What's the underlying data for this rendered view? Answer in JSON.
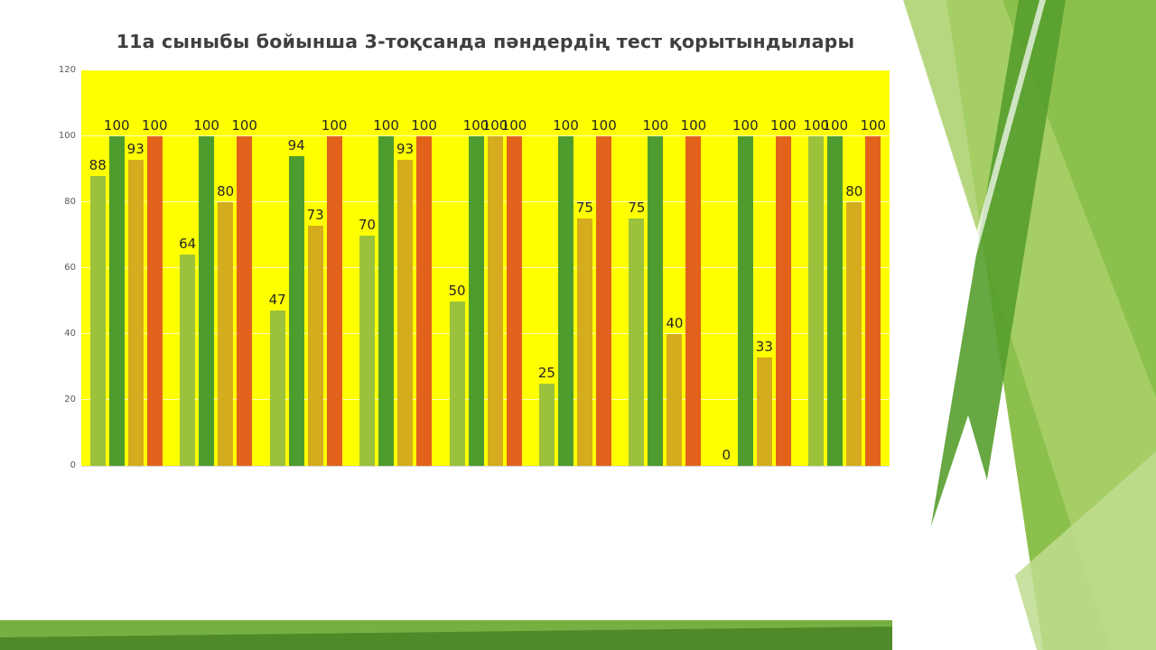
{
  "slide": {
    "background_accent_colors": [
      "#A9D06A",
      "#8CC04C",
      "#569E2E",
      "#BFDC8F",
      "#76B043",
      "#4E8A28"
    ]
  },
  "chart_data": {
    "type": "bar",
    "title": "11а сыныбы бойынша 3-тоқсанда пәндердің тест қорытындылары",
    "xlabel": "",
    "ylabel": "",
    "x_tick_labels": [],
    "series": [
      {
        "name": "light-green",
        "color": "#9CC13C",
        "values": [
          88,
          64,
          47,
          70,
          50,
          25,
          75,
          0,
          100
        ]
      },
      {
        "name": "dark-green",
        "color": "#4E9C2D",
        "values": [
          100,
          100,
          94,
          100,
          100,
          100,
          100,
          100,
          100
        ]
      },
      {
        "name": "gold",
        "color": "#D5AC1E",
        "values": [
          93,
          80,
          73,
          93,
          100,
          75,
          40,
          33,
          80
        ]
      },
      {
        "name": "orange",
        "color": "#E2621B",
        "values": [
          100,
          100,
          100,
          100,
          100,
          100,
          100,
          100,
          100
        ]
      }
    ],
    "ylim": [
      0,
      120
    ],
    "yticks": [
      0,
      20,
      40,
      60,
      80,
      100,
      120
    ],
    "plot_background": "#FFFF00",
    "grid": true,
    "legend": "none",
    "data_labels": true
  }
}
